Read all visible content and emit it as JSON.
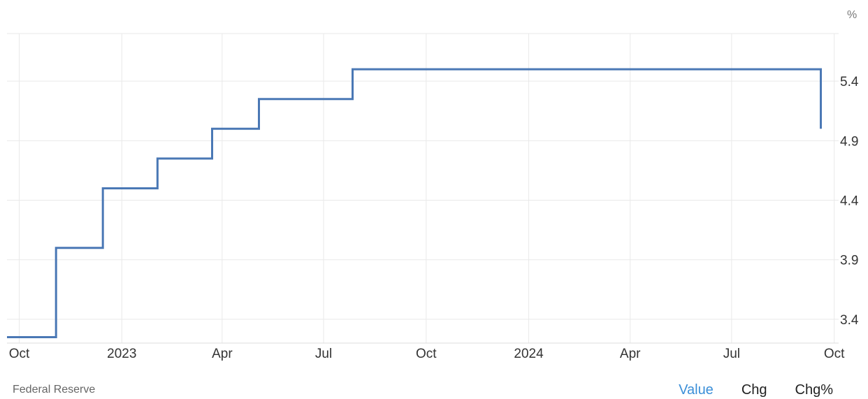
{
  "chart_data": {
    "type": "line",
    "step": true,
    "unit_label": "%",
    "x_ticks": [
      "Oct",
      "2023",
      "Apr",
      "Jul",
      "Oct",
      "2024",
      "Apr",
      "Jul",
      "Oct"
    ],
    "y_ticks": [
      3.4,
      3.9,
      4.4,
      4.9,
      5.4
    ],
    "ylim": [
      3.2,
      5.8
    ],
    "xlim": [
      "2022-09-20",
      "2024-10-05"
    ],
    "grid": true,
    "colors": {
      "line": "#4a78b5",
      "grid": "#e9e9e9"
    },
    "series": [
      {
        "x": [
          "2022-09-22",
          "2022-11-03",
          "2022-12-15",
          "2023-02-02",
          "2023-03-23",
          "2023-05-04",
          "2023-07-27",
          "2024-09-19"
        ],
        "values": [
          3.25,
          4.0,
          4.5,
          4.75,
          5.0,
          5.25,
          5.5,
          5.0
        ]
      }
    ]
  },
  "source": "Federal Reserve",
  "tabs": [
    {
      "label": "Value",
      "active": true
    },
    {
      "label": "Chg",
      "active": false
    },
    {
      "label": "Chg%",
      "active": false
    }
  ]
}
